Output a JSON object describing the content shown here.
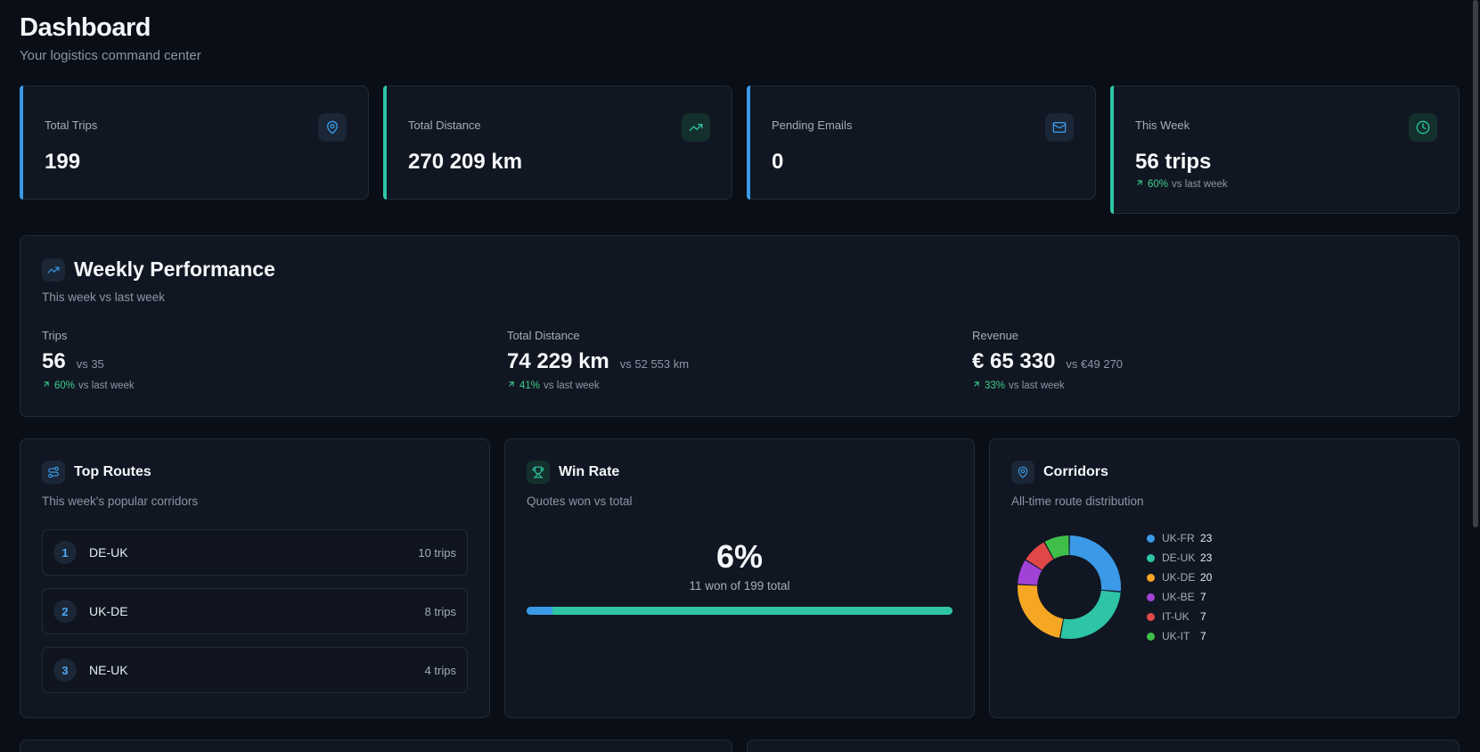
{
  "header": {
    "title": "Dashboard",
    "subtitle": "Your logistics command center"
  },
  "stats": [
    {
      "label": "Total Trips",
      "value": "199",
      "icon": "map-pin-icon",
      "accent": "#3b9ae8"
    },
    {
      "label": "Total Distance",
      "value": "270 209 km",
      "icon": "trending-up-icon",
      "accent": "#2ec4a6"
    },
    {
      "label": "Pending Emails",
      "value": "0",
      "icon": "mail-icon",
      "accent": "#3b9ae8"
    },
    {
      "label": "This Week",
      "value": "56 trips",
      "icon": "clock-icon",
      "accent": "#2ec4a6",
      "trend_pct": "60%",
      "trend_text": "vs last week"
    }
  ],
  "weekly": {
    "title": "Weekly Performance",
    "subtitle": "This week vs last week",
    "metrics": [
      {
        "label": "Trips",
        "value": "56",
        "compare": "vs 35",
        "trend_pct": "60%",
        "trend_text": "vs last week"
      },
      {
        "label": "Total Distance",
        "value": "74 229 km",
        "compare": "vs 52 553 km",
        "trend_pct": "41%",
        "trend_text": "vs last week"
      },
      {
        "label": "Revenue",
        "value": "€ 65 330",
        "compare": "vs €49 270",
        "trend_pct": "33%",
        "trend_text": "vs last week"
      }
    ]
  },
  "top_routes": {
    "title": "Top Routes",
    "subtitle": "This week's popular corridors",
    "items": [
      {
        "rank": "1",
        "name": "DE-UK",
        "trips": "10 trips"
      },
      {
        "rank": "2",
        "name": "UK-DE",
        "trips": "8 trips"
      },
      {
        "rank": "3",
        "name": "NE-UK",
        "trips": "4 trips"
      }
    ]
  },
  "win_rate": {
    "title": "Win Rate",
    "subtitle": "Quotes won vs total",
    "percent": "6%",
    "detail": "11 won of 199 total",
    "fraction": 0.06
  },
  "corridors": {
    "title": "Corridors",
    "subtitle": "All-time route distribution"
  },
  "chart_data": {
    "type": "pie",
    "categories": [
      "UK-FR",
      "DE-UK",
      "UK-DE",
      "UK-BE",
      "IT-UK",
      "UK-IT"
    ],
    "values": [
      23,
      23,
      20,
      7,
      7,
      7
    ],
    "colors": [
      "#3b9ae8",
      "#2ec4a6",
      "#f5a623",
      "#a142d6",
      "#e04848",
      "#3fbf4a"
    ],
    "legend_position": "right",
    "donut": true
  }
}
